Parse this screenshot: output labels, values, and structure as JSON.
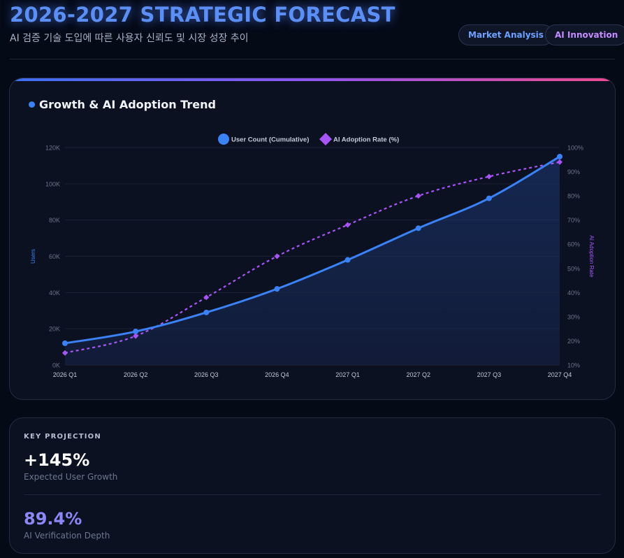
{
  "header": {
    "title": "2026-2027 STRATEGIC FORECAST",
    "subtitle": "AI 검증 기술 도입에 따른 사용자 신뢰도 및 시장 성장 추이",
    "tags": [
      "Market Analysis",
      "AI Innovation"
    ]
  },
  "colors": {
    "users": "#3b82f6",
    "adoption": "#a855f7",
    "accent_gradient": [
      "#3b6ff0",
      "#8f55ef",
      "#ee4a8d"
    ]
  },
  "chart_card": {
    "title": "Growth & AI Adoption Trend"
  },
  "chart_data": {
    "type": "line",
    "title": "Growth & AI Adoption Trend",
    "categories": [
      "2026 Q1",
      "2026 Q2",
      "2026 Q3",
      "2026 Q4",
      "2027 Q1",
      "2027 Q2",
      "2027 Q3",
      "2027 Q4"
    ],
    "series": [
      {
        "name": "User Count (Cumulative)",
        "axis": "left",
        "style": "solid-area",
        "values": [
          12000,
          18500,
          29000,
          42000,
          58000,
          75500,
          92000,
          115000
        ]
      },
      {
        "name": "AI Adoption Rate (%)",
        "axis": "right",
        "style": "dashed-diamond",
        "values": [
          15,
          22,
          38,
          55,
          68,
          80,
          88,
          94
        ]
      }
    ],
    "y_left": {
      "label": "Users",
      "range": [
        0,
        120000
      ],
      "ticks": [
        0,
        20000,
        40000,
        60000,
        80000,
        100000,
        120000
      ],
      "tick_labels": [
        "0K",
        "20K",
        "40K",
        "60K",
        "80K",
        "100K",
        "120K"
      ]
    },
    "y_right": {
      "label": "AI Adoption Rate",
      "range": [
        10,
        100
      ],
      "ticks": [
        10,
        20,
        30,
        40,
        50,
        60,
        70,
        80,
        90,
        100
      ],
      "tick_labels": [
        "10%",
        "20%",
        "30%",
        "40%",
        "50%",
        "60%",
        "70%",
        "80%",
        "90%",
        "100%"
      ]
    },
    "legend_position": "top-center",
    "grid": true
  },
  "projection": {
    "label": "KEY PROJECTION",
    "metrics": [
      {
        "value": "+145%",
        "desc": "Expected User Growth"
      },
      {
        "value": "89.4%",
        "desc": "AI Verification Depth"
      }
    ]
  }
}
